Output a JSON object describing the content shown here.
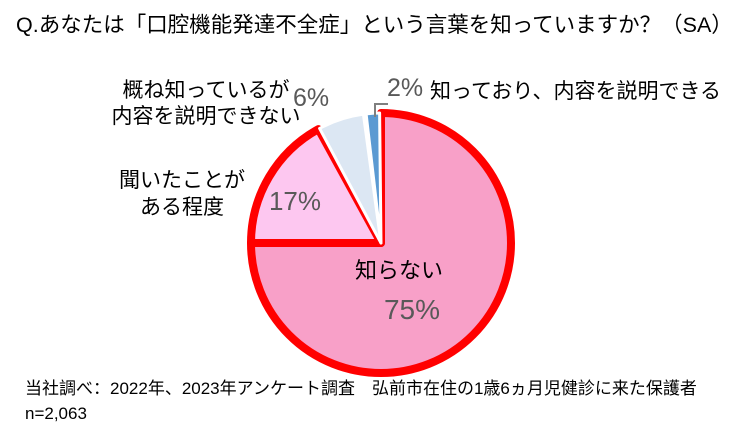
{
  "title": "Q.あなたは「口腔機能発達不全症」という言葉を知っていますか？（SA）",
  "chart_data": {
    "type": "pie",
    "title": "Q.あなたは「口腔機能発達不全症」という言葉を知っていますか？（SA）",
    "unit": "%",
    "start_angle_deg": 0,
    "direction": "clockwise",
    "legend_position": "direct-labels-around-pie",
    "segments": [
      {
        "label": "知らない",
        "value_pct": 75,
        "display": "75%",
        "fill": "#F8A0C8",
        "stroke": "#FF0000"
      },
      {
        "label": "聞いたことがある程度",
        "value_pct": 17,
        "display": "17%",
        "fill": "#FDC7F0",
        "stroke": "#FF0000"
      },
      {
        "label": "概ね知っているが内容を説明できない",
        "value_pct": 6,
        "display": "6%",
        "fill": "#DCE7F3",
        "stroke": "#FFFFFF"
      },
      {
        "label": "知っており、内容を説明できる",
        "value_pct": 2,
        "display": "2%",
        "fill": "#5B9AD2",
        "stroke": "#FFFFFF"
      }
    ]
  },
  "callouts": {
    "oomune_line1": "概ね知っているが",
    "oomune_line2": "内容を説明できない",
    "kiita_line1": "聞いたことが",
    "kiita_line2": "ある程度",
    "shiranai": "知らない",
    "shitteori": "知っており、内容を説明できる"
  },
  "footer": {
    "line1": "当社調べ：2022年、2023年アンケート調査　弘前市在住の1歳6ヵ月児健診に来た保護者",
    "line2": "n=2,063"
  },
  "colors": {
    "pie_outline_red": "#FF0000",
    "slice_gap_white": "#FFFFFF",
    "leader_line": "#7F7F7F",
    "percent_text": "#595959",
    "label_text": "#000000",
    "background": "#FFFFFF"
  }
}
